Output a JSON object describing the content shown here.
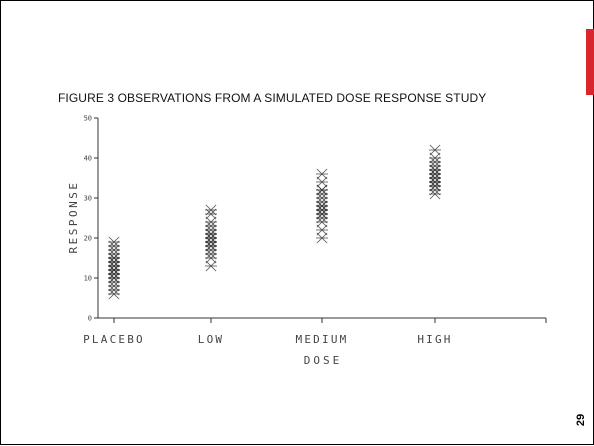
{
  "slide": {
    "page_number": "29",
    "accent_color": "#d9252c"
  },
  "chart_data": {
    "type": "scatter",
    "title": "FIGURE 3   OBSERVATIONS FROM A SIMULATED DOSE RESPONSE STUDY",
    "xlabel": "DOSE",
    "ylabel": "RESPONSE",
    "categories": [
      "PLACEBO",
      "LOW",
      "MEDIUM",
      "HIGH"
    ],
    "ylim": [
      0,
      50
    ],
    "yticks": [
      0,
      10,
      20,
      30,
      40,
      50
    ],
    "marker": "asterisk",
    "grid": false,
    "points": [
      {
        "x": "PLACEBO",
        "y": [
          6,
          7,
          8,
          9,
          10,
          10,
          11,
          11,
          12,
          12,
          12,
          13,
          13,
          14,
          14,
          15,
          15,
          16,
          17,
          18,
          19
        ]
      },
      {
        "x": "LOW",
        "y": [
          13,
          15,
          16,
          17,
          18,
          18,
          19,
          19,
          20,
          20,
          21,
          21,
          22,
          23,
          24,
          26,
          27
        ]
      },
      {
        "x": "MEDIUM",
        "y": [
          20,
          22,
          24,
          25,
          26,
          26,
          27,
          27,
          28,
          28,
          29,
          30,
          31,
          32,
          32,
          34,
          36
        ]
      },
      {
        "x": "HIGH",
        "y": [
          31,
          32,
          33,
          33,
          34,
          34,
          35,
          35,
          36,
          36,
          37,
          37,
          38,
          39,
          40,
          42
        ]
      }
    ]
  }
}
